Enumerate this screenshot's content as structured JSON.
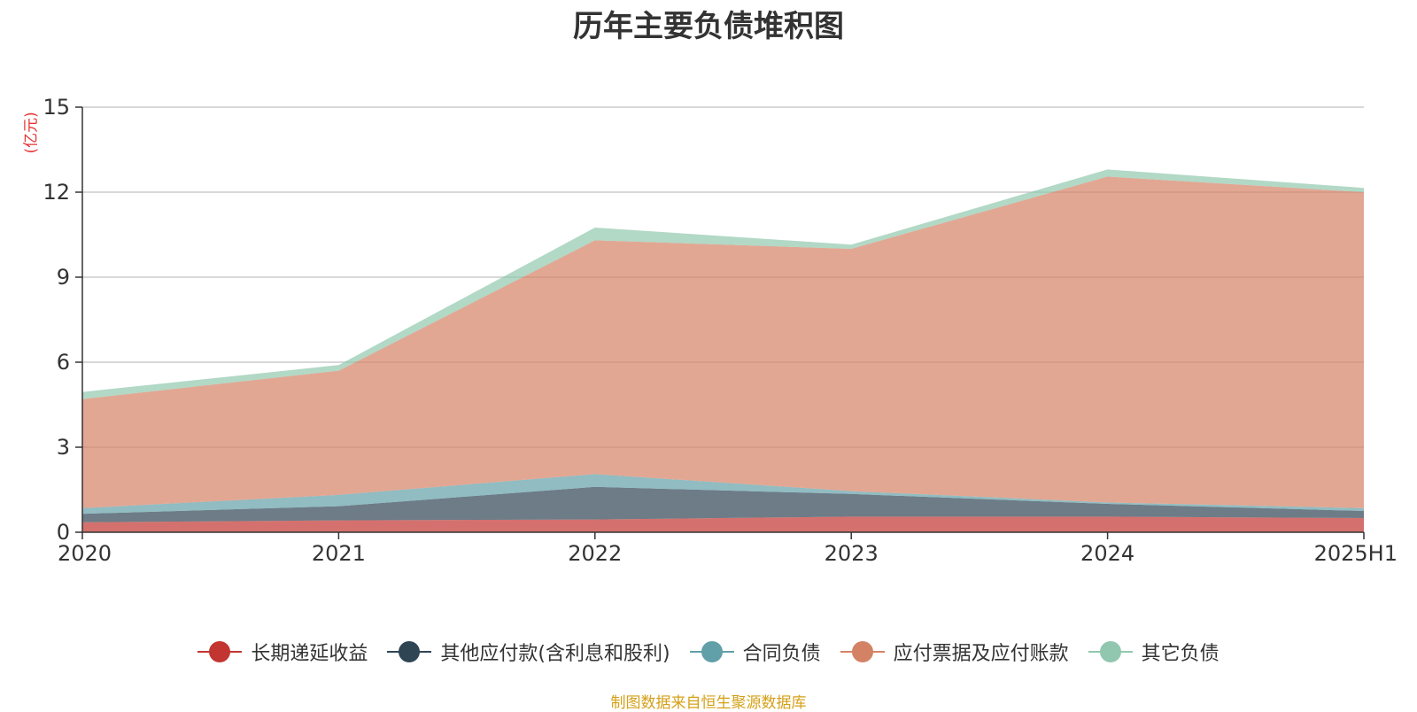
{
  "chart_data": {
    "type": "area",
    "stacked": true,
    "title": "历年主要负债堆积图",
    "unit_label": "(亿元)",
    "categories": [
      "2020",
      "2021",
      "2022",
      "2023",
      "2024",
      "2025H1"
    ],
    "ylim": [
      0,
      15
    ],
    "yticks": [
      0,
      3,
      6,
      9,
      12,
      15
    ],
    "grid": true,
    "legend_position": "bottom",
    "series": [
      {
        "name": "长期递延收益",
        "color": "#c23531",
        "values": [
          0.35,
          0.42,
          0.45,
          0.55,
          0.55,
          0.5
        ]
      },
      {
        "name": "其他应付款(含利息和股利)",
        "color": "#2f4554",
        "values": [
          0.3,
          0.5,
          1.15,
          0.8,
          0.45,
          0.25
        ]
      },
      {
        "name": "合同负债",
        "color": "#61a0a8",
        "values": [
          0.2,
          0.4,
          0.45,
          0.1,
          0.05,
          0.1
        ]
      },
      {
        "name": "应付票据及应付账款",
        "color": "#d48265",
        "values": [
          3.85,
          4.38,
          8.25,
          8.55,
          11.5,
          11.15
        ]
      },
      {
        "name": "其它负债",
        "color": "#91c7ae",
        "values": [
          0.25,
          0.2,
          0.45,
          0.15,
          0.25,
          0.15
        ]
      }
    ]
  },
  "source_note": "制图数据来自恒生聚源数据库"
}
